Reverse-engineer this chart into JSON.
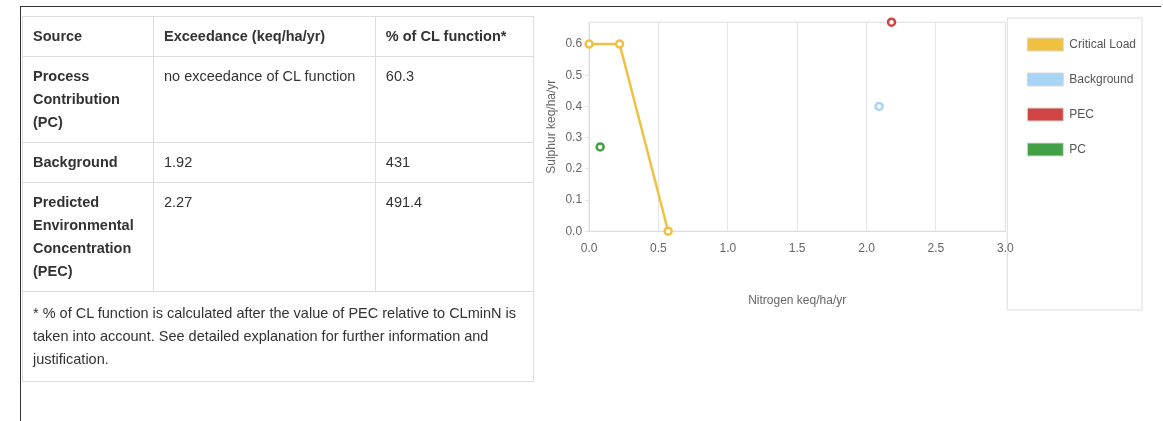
{
  "chart_data": [
    {
      "type": "other",
      "categories": [
        "Source",
        "Exceedance (keq/ha/yr)",
        "% of CL function*"
      ],
      "y_categories": [
        "Process Contribution (PC)",
        "Background",
        "Predicted Environmental Concentration (PEC)"
      ],
      "cell_labels": [
        [
          "no exceedance of CL function",
          "60.3"
        ],
        [
          "1.92",
          "431"
        ],
        [
          "2.27",
          "491.4"
        ]
      ],
      "annotations": [
        "* % of CL function is calculated after the value of PEC relative to CLminN is taken into account. See detailed explanation for further information and justification."
      ]
    },
    {
      "type": "scatter",
      "xlabel": "Nitrogen keq/ha/yr",
      "ylabel": "Sulphur keq/ha/yr",
      "xlim": [
        0,
        3
      ],
      "xticks": [
        {
          "value": 0,
          "label": "0.0"
        },
        {
          "value": 0.5,
          "label": "0.5"
        },
        {
          "value": 1,
          "label": "1.0"
        },
        {
          "value": 1.5,
          "label": "1.5"
        },
        {
          "value": 2,
          "label": "2.0"
        },
        {
          "value": 2.5,
          "label": "2.5"
        },
        {
          "value": 3,
          "label": "3.0"
        }
      ],
      "ylim": [
        0,
        0.67
      ],
      "yticks": [
        {
          "value": 0,
          "label": "0.0"
        },
        {
          "value": 0.1,
          "label": "0.1"
        },
        {
          "value": 0.2,
          "label": "0.2"
        },
        {
          "value": 0.3,
          "label": "0.3"
        },
        {
          "value": 0.4,
          "label": "0.4"
        },
        {
          "value": 0.5,
          "label": "0.5"
        },
        {
          "value": 0.6,
          "label": "0.6"
        }
      ],
      "grid": "x",
      "legend": "right",
      "marker": "circle",
      "series": [
        {
          "name": "Critical Load",
          "type": "line",
          "color": "#f0c040",
          "x": [
            0,
            0.22,
            0.57
          ],
          "values": [
            0.6,
            0.6,
            0
          ]
        },
        {
          "name": "Background",
          "color": "#a8d4f5",
          "x": [
            2.09
          ],
          "values": [
            0.4
          ]
        },
        {
          "name": "PEC",
          "color": "#d04444",
          "x": [
            2.18
          ],
          "values": [
            0.67
          ]
        },
        {
          "name": "PC",
          "color": "#44a044",
          "x": [
            0.08
          ],
          "values": [
            0.27
          ]
        }
      ]
    }
  ]
}
